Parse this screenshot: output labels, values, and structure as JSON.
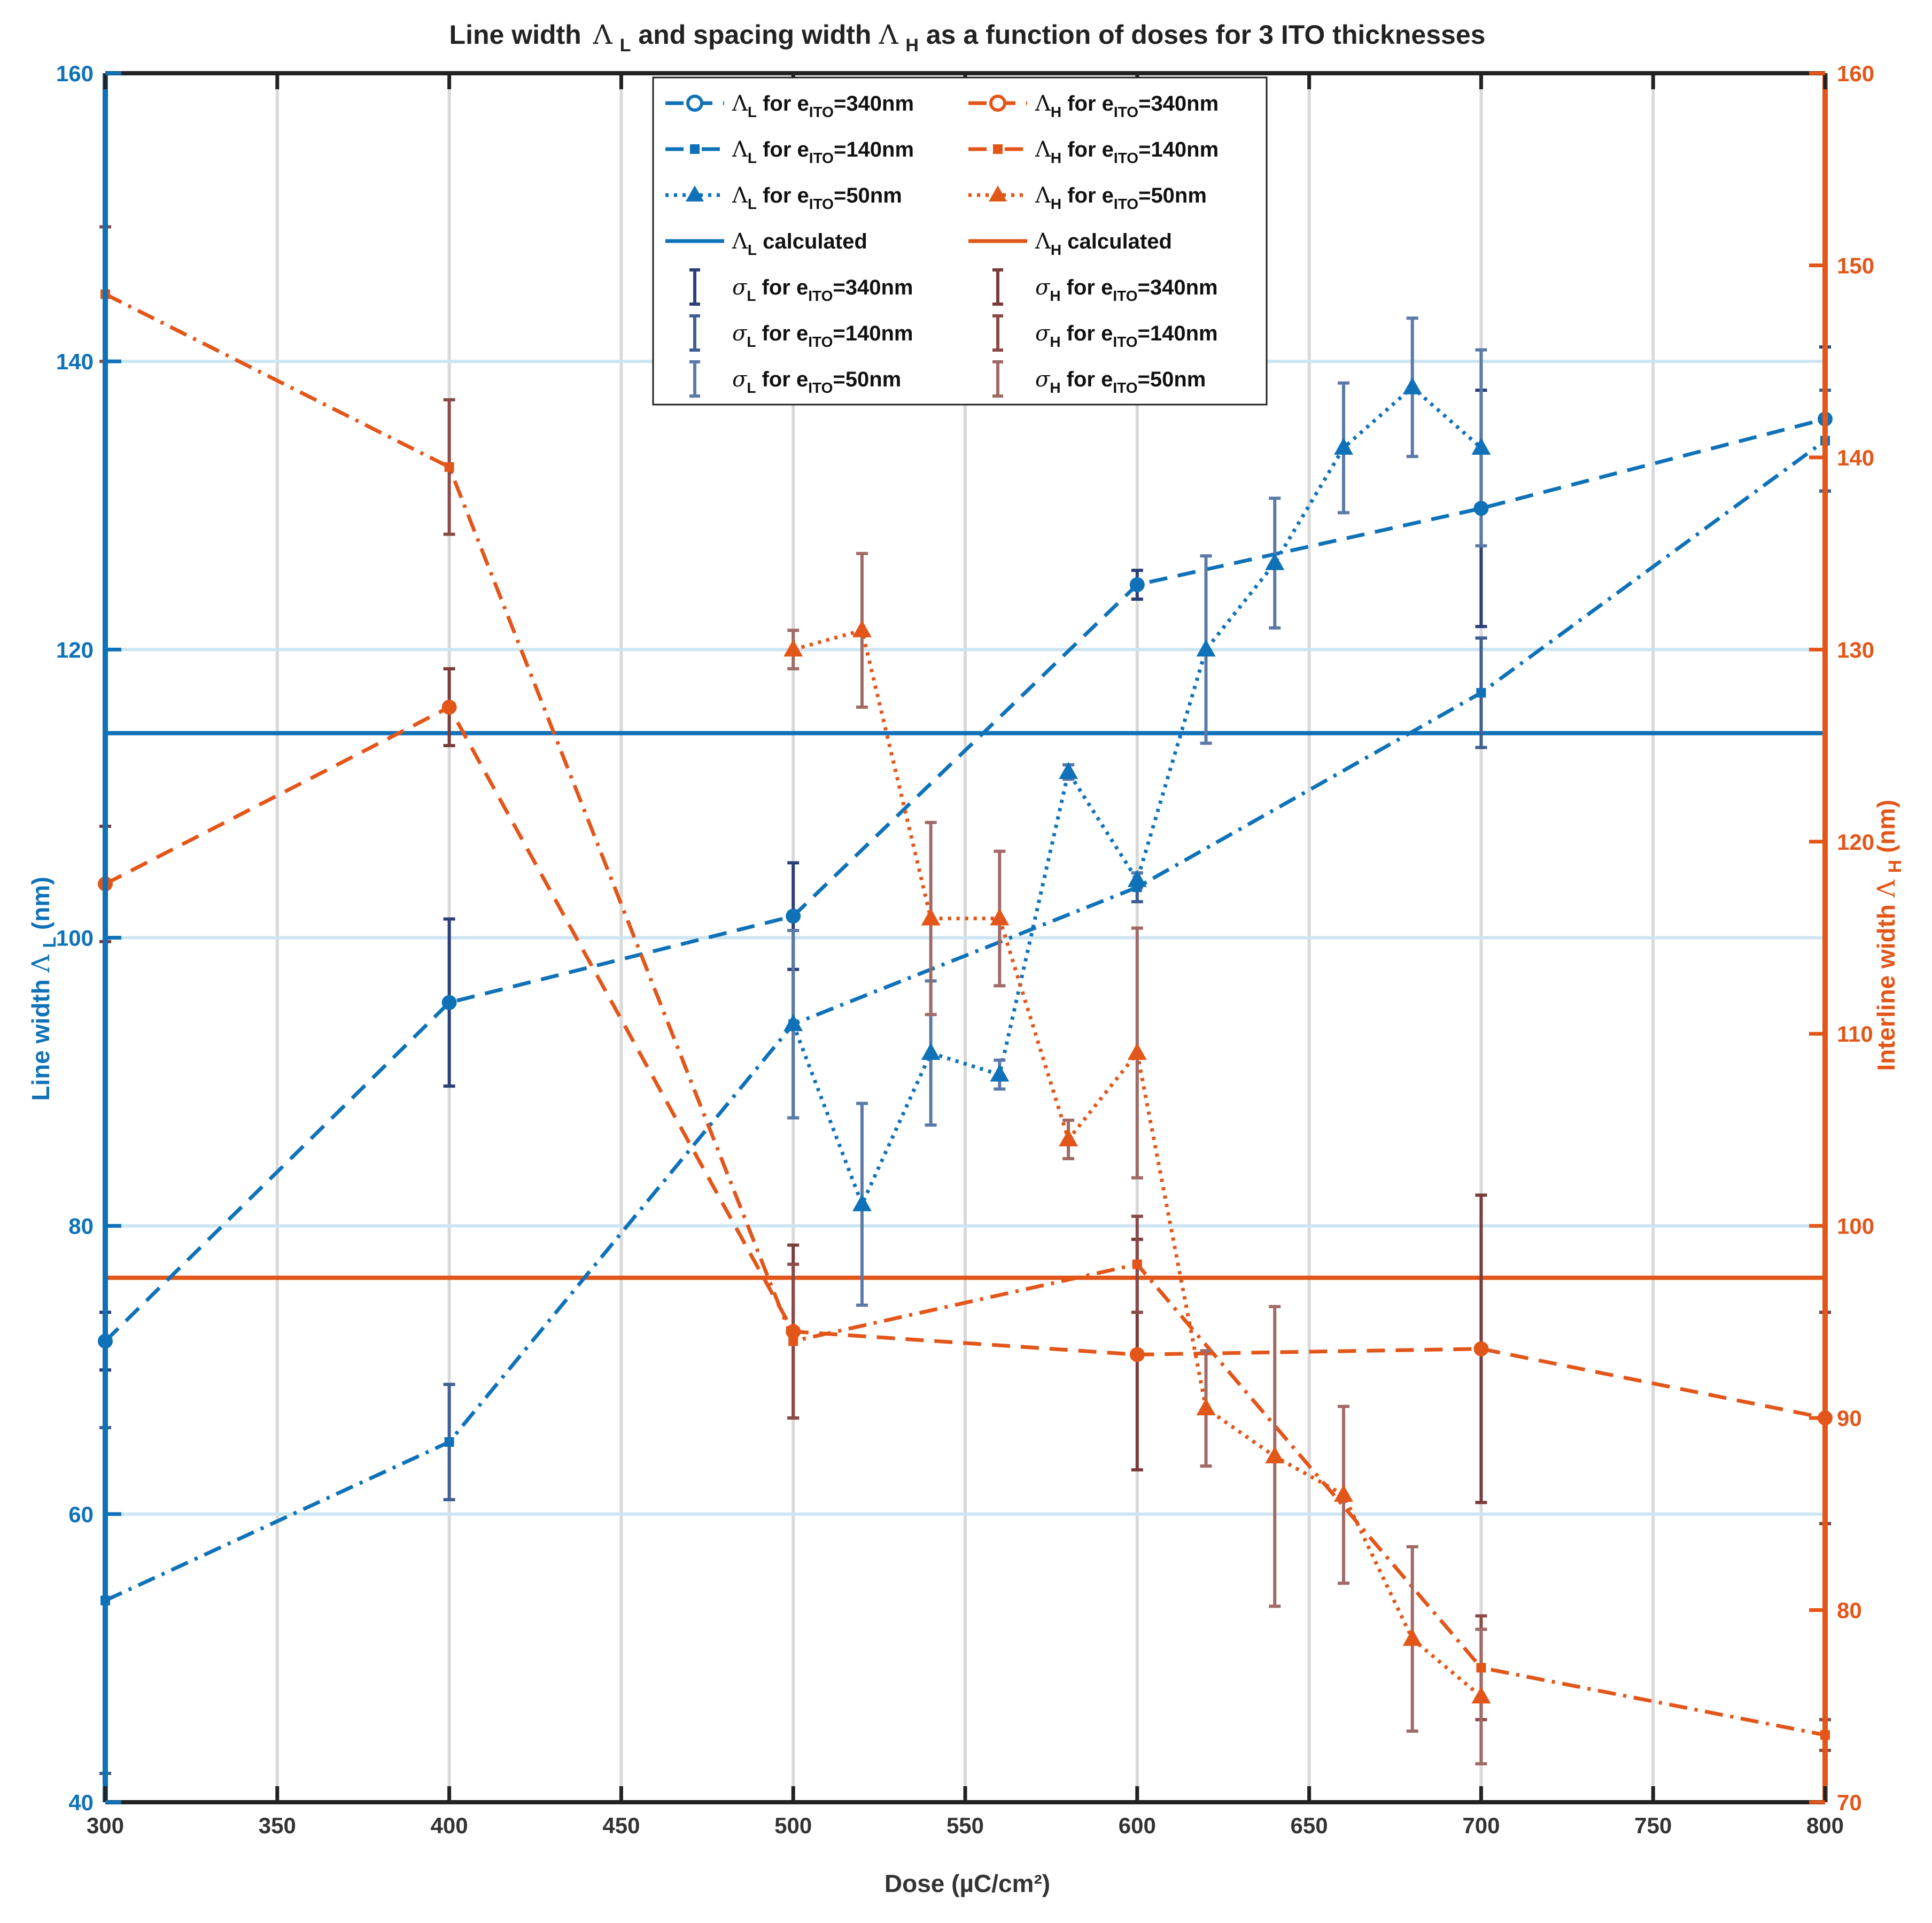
{
  "chart_data": {
    "type": "line",
    "title": {
      "main": "Line width",
      "l1": "Λ",
      "l1_sub": "L",
      "mid": " and spacing width ",
      "l2": "Λ",
      "l2_sub": "H",
      "end": " as a function of doses for 3 ITO thicknesses"
    },
    "xlabel": "Dose (µC/cm²)",
    "ylabel_left": {
      "text": "Line width ",
      "sym": "Λ",
      "sub": "L",
      "unit": " (nm)"
    },
    "ylabel_right": {
      "text": "Interline width ",
      "sym": "Λ",
      "sub": "H",
      "unit": "(nm)"
    },
    "xlim": [
      300,
      800
    ],
    "ylim_left": [
      40,
      160
    ],
    "ylim_right": [
      70,
      160
    ],
    "xticks": [
      300,
      350,
      400,
      450,
      500,
      550,
      600,
      650,
      700,
      750,
      800
    ],
    "yticks_left": [
      40,
      60,
      80,
      100,
      120,
      140,
      160
    ],
    "yticks_right": [
      70,
      80,
      90,
      100,
      110,
      120,
      130,
      140,
      150,
      160
    ],
    "colors": {
      "blue": "#0f72b8",
      "orange": "#e3561a",
      "grid": "#d9d9d9",
      "grid_blue": "#cde4f3",
      "err_blue_340": "#2b3f78",
      "err_blue_140": "#3f5e92",
      "err_blue_50": "#5b7aa8",
      "err_red_340": "#7a3b3b",
      "err_red_140": "#8a4a48",
      "err_red_50": "#a06a66"
    },
    "series": [
      {
        "name": "ΛL for eITO=340nm",
        "axis": "left",
        "color": "#0f72b8",
        "style": "dashed",
        "marker": "circle",
        "x": [
          300,
          400,
          500,
          600,
          700,
          800
        ],
        "y": [
          72,
          95.5,
          101.5,
          124.5,
          129.8,
          136
        ]
      },
      {
        "name": "ΛL for eITO=140nm",
        "axis": "left",
        "color": "#0f72b8",
        "style": "dashdot",
        "marker": "square",
        "x": [
          300,
          400,
          500,
          600,
          700,
          800
        ],
        "y": [
          54,
          65,
          94,
          103.5,
          117,
          134.5
        ]
      },
      {
        "name": "ΛL for eITO=50nm",
        "axis": "left",
        "color": "#0f72b8",
        "style": "dotted",
        "marker": "triangle",
        "x": [
          500,
          520,
          540,
          560,
          580,
          600,
          620,
          640,
          660,
          680,
          700
        ],
        "y": [
          94,
          81.5,
          92,
          90.5,
          111.5,
          104,
          120,
          126,
          134,
          138.2,
          134
        ]
      },
      {
        "name": "ΛL calculated",
        "axis": "left",
        "color": "#0f72b8",
        "style": "solid",
        "marker": "none",
        "x": [
          300,
          800
        ],
        "y": [
          114.2,
          114.2
        ]
      },
      {
        "name": "ΛH for eITO=340nm",
        "axis": "right",
        "color": "#e3561a",
        "style": "dashed",
        "marker": "circle",
        "x": [
          300,
          400,
          500,
          600,
          700,
          800
        ],
        "y": [
          117.8,
          127,
          94.5,
          93.3,
          93.6,
          90
        ]
      },
      {
        "name": "ΛH for eITO=140nm",
        "axis": "right",
        "color": "#e3561a",
        "style": "dashdot",
        "marker": "square",
        "x": [
          300,
          400,
          500,
          600,
          700,
          800
        ],
        "y": [
          148.5,
          139.5,
          94,
          98,
          77,
          73.5
        ]
      },
      {
        "name": "ΛH for eITO=50nm",
        "axis": "right",
        "color": "#e3561a",
        "style": "dotted",
        "marker": "triangle",
        "x": [
          500,
          520,
          540,
          560,
          580,
          600,
          620,
          640,
          660,
          680,
          700
        ],
        "y": [
          130,
          131,
          116,
          116,
          104.5,
          109,
          90.5,
          88,
          86,
          78.5,
          75.5
        ]
      },
      {
        "name": "ΛH calculated",
        "axis": "right",
        "color": "#e3561a",
        "style": "solid",
        "marker": "none",
        "x": [
          300,
          800
        ],
        "y": [
          97.3,
          97.3
        ]
      }
    ],
    "errorbars": [
      {
        "name": "σL for eITO=340nm",
        "axis": "left",
        "color": "#2b3f78",
        "x": [
          300,
          400,
          500,
          600,
          700,
          800
        ],
        "y": [
          72,
          95.5,
          101.5,
          124.5,
          129.8,
          136
        ],
        "err": [
          2,
          5.8,
          3.7,
          1,
          8.2,
          5
        ]
      },
      {
        "name": "σL for eITO=140nm",
        "axis": "left",
        "color": "#3f5e92",
        "x": [
          300,
          400,
          500,
          600,
          700,
          800
        ],
        "y": [
          54,
          65,
          94,
          103.5,
          117,
          134.5
        ],
        "err": [
          12,
          4,
          6.5,
          1,
          3.8,
          3.5
        ]
      },
      {
        "name": "σL for eITO=50nm",
        "axis": "left",
        "color": "#5b7aa8",
        "x": [
          500,
          520,
          540,
          560,
          580,
          600,
          620,
          640,
          660,
          680,
          700
        ],
        "y": [
          94,
          81.5,
          92,
          90.5,
          111.5,
          104,
          120,
          126,
          134,
          138.2,
          134
        ],
        "err": [
          6.5,
          7,
          5,
          1,
          0.5,
          0.5,
          6.5,
          4.5,
          4.5,
          4.8,
          6.8
        ]
      },
      {
        "name": "σH for eITO=340nm",
        "axis": "right",
        "color": "#7a3b3b",
        "x": [
          300,
          400,
          500,
          600,
          700,
          800
        ],
        "y": [
          117.8,
          127,
          94.5,
          93.3,
          93.6,
          90
        ],
        "err": [
          3,
          2,
          4.5,
          6,
          8,
          5.5
        ]
      },
      {
        "name": "σH for eITO=140nm",
        "axis": "right",
        "color": "#8a4a48",
        "x": [
          300,
          400,
          500,
          600,
          700,
          800
        ],
        "y": [
          148.5,
          139.5,
          94,
          98,
          77,
          73.5
        ],
        "err": [
          3.5,
          3.5,
          4,
          2.5,
          2.7,
          0.8
        ]
      },
      {
        "name": "σH for eITO=50nm",
        "axis": "right",
        "color": "#a06a66",
        "x": [
          500,
          520,
          540,
          560,
          580,
          600,
          620,
          640,
          660,
          680,
          700
        ],
        "y": [
          130,
          131,
          116,
          116,
          104.5,
          109,
          90.5,
          88,
          86,
          78.5,
          75.5
        ],
        "err": [
          1,
          4,
          5,
          3.5,
          1,
          6.5,
          3,
          7.8,
          4.6,
          4.8,
          3.5
        ]
      }
    ],
    "legend": {
      "position": "top-center",
      "entries": [
        {
          "key": "ΛL340",
          "sym": "Λ",
          "sub": "L",
          "pre": " for e",
          "tsub": "ITO",
          "post": "=340nm"
        },
        {
          "key": "ΛH340",
          "sym": "Λ",
          "sub": "H",
          "pre": " for e",
          "tsub": "ITO",
          "post": "=340nm"
        },
        {
          "key": "ΛL140",
          "sym": "Λ",
          "sub": "L",
          "pre": " for  e",
          "tsub": "ITO",
          "post": "=140nm"
        },
        {
          "key": "ΛH140",
          "sym": "Λ",
          "sub": "H",
          "pre": " for e",
          "tsub": "ITO",
          "post": "=140nm"
        },
        {
          "key": "ΛL50",
          "sym": "Λ",
          "sub": "L",
          "pre": " for  e",
          "tsub": "ITO",
          "post": "=50nm"
        },
        {
          "key": "ΛH50",
          "sym": "Λ",
          "sub": "H",
          "pre": " for e",
          "tsub": "ITO",
          "post": "=50nm"
        },
        {
          "key": "ΛLcalc",
          "sym": "Λ",
          "sub": "L",
          "pre": " calculated",
          "tsub": "",
          "post": ""
        },
        {
          "key": "ΛHcalc",
          "sym": "Λ",
          "sub": "H",
          "pre": " calculated",
          "tsub": "",
          "post": ""
        },
        {
          "key": "σL340",
          "sym": "σ",
          "sub": "L",
          "pre": " for e",
          "tsub": "ITO",
          "post": "=340nm"
        },
        {
          "key": "σH340",
          "sym": "σ",
          "sub": "H",
          "pre": " for e",
          "tsub": "ITO",
          "post": "=340nm"
        },
        {
          "key": "σL140",
          "sym": "σ",
          "sub": "L",
          "pre": " for e",
          "tsub": "ITO",
          "post": "=140nm"
        },
        {
          "key": "σH140",
          "sym": "σ",
          "sub": "H",
          "pre": " for e",
          "tsub": "ITO",
          "post": "=140nm"
        },
        {
          "key": "σL50",
          "sym": "σ",
          "sub": "L",
          "pre": " for e",
          "tsub": "ITO",
          "post": "=50nm"
        },
        {
          "key": "σH50",
          "sym": "σ",
          "sub": "H",
          "pre": " for e",
          "tsub": "ITO",
          "post": "=50nm"
        }
      ]
    }
  }
}
